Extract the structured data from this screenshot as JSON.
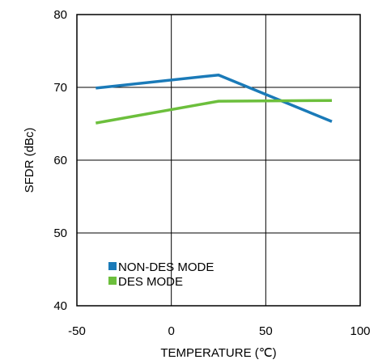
{
  "chart_data": {
    "type": "line",
    "xlabel": "TEMPERATURE (℃)",
    "ylabel": "SFDR (dBc)",
    "xlim": [
      -50,
      100
    ],
    "ylim": [
      40,
      80
    ],
    "xticks": [
      -50,
      0,
      50,
      100
    ],
    "yticks": [
      40,
      50,
      60,
      70,
      80
    ],
    "xtick_labels": [
      "-50",
      "0",
      "50",
      "100"
    ],
    "ytick_labels": [
      "40",
      "50",
      "60",
      "70",
      "80"
    ],
    "grid": true,
    "legend_position": "bottom-left",
    "series": [
      {
        "name": "NON-DES MODE",
        "color": "#1a7ab8",
        "x": [
          -40,
          25,
          85
        ],
        "y": [
          69.9,
          71.7,
          65.3
        ]
      },
      {
        "name": "DES MODE",
        "color": "#6cbf3c",
        "x": [
          -40,
          25,
          85
        ],
        "y": [
          65.1,
          68.1,
          68.2
        ]
      }
    ]
  }
}
